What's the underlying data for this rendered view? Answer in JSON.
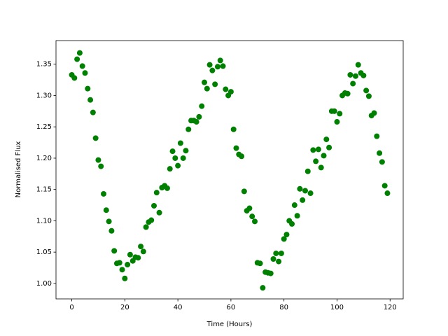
{
  "chart_data": {
    "type": "scatter",
    "xlabel": "Time (Hours)",
    "ylabel": "Normalised Flux",
    "color": "#008000",
    "x": [
      0,
      1,
      2,
      3,
      4,
      5,
      6,
      7,
      8,
      9,
      10,
      11,
      12,
      13,
      14,
      15,
      16,
      17,
      18,
      19,
      20,
      21,
      22,
      23,
      24,
      25,
      26,
      27,
      28,
      29,
      30,
      31,
      32,
      33,
      34,
      35,
      36,
      37,
      38,
      39,
      40,
      41,
      42,
      43,
      44,
      45,
      46,
      47,
      48,
      49,
      50,
      51,
      52,
      53,
      54,
      55,
      56,
      57,
      58,
      59,
      60,
      61,
      62,
      63,
      64,
      65,
      66,
      67,
      68,
      69,
      70,
      71,
      72,
      73,
      74,
      75,
      76,
      77,
      78,
      79,
      80,
      81,
      82,
      83,
      84,
      85,
      86,
      87,
      88,
      89,
      90,
      91,
      92,
      93,
      94,
      95,
      96,
      97,
      98,
      99,
      100,
      101,
      102,
      103,
      104,
      105,
      106,
      107,
      108,
      109,
      110,
      111,
      112,
      113,
      114,
      115,
      116,
      117,
      118,
      119
    ],
    "values": [
      1.333,
      1.328,
      1.358,
      1.368,
      1.347,
      1.336,
      1.311,
      1.293,
      1.273,
      1.232,
      1.197,
      1.187,
      1.143,
      1.117,
      1.099,
      1.084,
      1.052,
      1.032,
      1.033,
      1.022,
      1.008,
      1.03,
      1.046,
      1.036,
      1.042,
      1.041,
      1.059,
      1.051,
      1.09,
      1.098,
      1.101,
      1.124,
      1.145,
      1.113,
      1.153,
      1.156,
      1.152,
      1.183,
      1.211,
      1.2,
      1.188,
      1.224,
      1.2,
      1.212,
      1.246,
      1.26,
      1.26,
      1.258,
      1.266,
      1.283,
      1.321,
      1.311,
      1.349,
      1.34,
      1.318,
      1.346,
      1.356,
      1.347,
      1.31,
      1.3,
      1.306,
      1.246,
      1.216,
      1.206,
      1.203,
      1.147,
      1.116,
      1.12,
      1.107,
      1.099,
      1.033,
      1.032,
      0.993,
      1.018,
      1.017,
      1.016,
      1.039,
      1.048,
      1.035,
      1.048,
      1.071,
      1.078,
      1.1,
      1.095,
      1.125,
      1.108,
      1.151,
      1.133,
      1.148,
      1.179,
      1.144,
      1.213,
      1.195,
      1.214,
      1.185,
      1.204,
      1.23,
      1.217,
      1.275,
      1.275,
      1.258,
      1.271,
      1.3,
      1.304,
      1.303,
      1.333,
      1.319,
      1.331,
      1.349,
      1.336,
      1.332,
      1.308,
      1.299,
      1.268,
      1.272,
      1.235,
      1.208,
      1.194,
      1.156,
      1.144
    ],
    "xlim": [
      -5.95,
      124.95
    ],
    "xticks": [
      0,
      20,
      40,
      60,
      80,
      100,
      120
    ],
    "ylim": [
      0.9753,
      1.3877
    ],
    "yticks": [
      {
        "value": 1,
        "label": "1.00"
      },
      1.05,
      {
        "value": 1.1,
        "label": "1.10"
      },
      1.15,
      {
        "value": 1.2,
        "label": "1.20"
      },
      1.25,
      {
        "value": 1.3,
        "label": "1.30"
      },
      1.35
    ]
  }
}
